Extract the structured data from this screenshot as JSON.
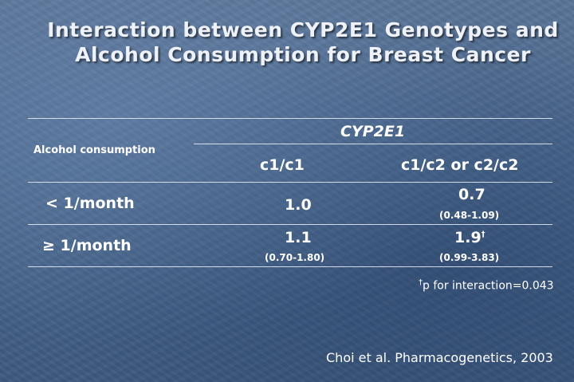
{
  "title": {
    "line1": "Interaction between CYP2E1 Genotypes and",
    "line2": "Alcohol Consumption for Breast Cancer"
  },
  "table": {
    "row_header_label": "Alcohol consumption",
    "group_header": "CYP2E1",
    "columns": [
      "c1/c1",
      "c1/c2 or c2/c2"
    ],
    "rows": [
      {
        "label": "< 1/month",
        "cells": [
          {
            "value": "1.0",
            "ci": ""
          },
          {
            "value": "0.7",
            "ci": "(0.48-1.09)"
          }
        ]
      },
      {
        "label": "≥ 1/month",
        "cells": [
          {
            "value": "1.1",
            "ci": "(0.70-1.80)"
          },
          {
            "value": "1.9",
            "sup": "†",
            "ci": "(0.99-3.83)"
          }
        ]
      }
    ]
  },
  "footnote": {
    "mark": "†",
    "text": "p for interaction=0.043"
  },
  "citation": "Choi et al. Pharmacogenetics, 2003"
}
